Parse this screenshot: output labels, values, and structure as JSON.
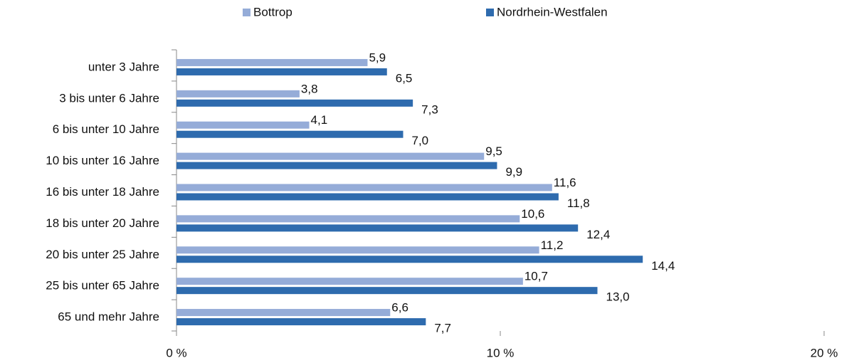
{
  "chart_data": {
    "type": "bar",
    "orientation": "horizontal",
    "categories": [
      "unter 3 Jahre",
      "3 bis unter 6 Jahre",
      "6 bis unter 10 Jahre",
      "10 bis unter 16 Jahre",
      "16 bis unter 18 Jahre",
      "18 bis unter 20 Jahre",
      "20 bis unter 25 Jahre",
      "25 bis unter 65 Jahre",
      "65 und mehr Jahre"
    ],
    "series": [
      {
        "name": "Bottrop",
        "color": "#95acd8",
        "values": [
          5.9,
          3.8,
          4.1,
          9.5,
          11.6,
          10.6,
          11.2,
          10.7,
          6.6
        ],
        "value_labels": [
          "5,9",
          "3,8",
          "4,1",
          "9,5",
          "11,6",
          "10,6",
          "11,2",
          "10,7",
          "6,6"
        ]
      },
      {
        "name": "Nordrhein-Westfalen",
        "color": "#2e6bae",
        "values": [
          6.5,
          7.3,
          7.0,
          9.9,
          11.8,
          12.4,
          14.4,
          13.0,
          7.7
        ],
        "value_labels": [
          "6,5",
          "7,3",
          "7,0",
          "9,9",
          "11,8",
          "12,4",
          "14,4",
          "13,0",
          "7,7"
        ]
      }
    ],
    "xlim": [
      0,
      20
    ],
    "xticks": [
      {
        "value": 0,
        "label": "0 %"
      },
      {
        "value": 10,
        "label": "10 %"
      },
      {
        "value": 20,
        "label": "20 %"
      }
    ],
    "legend": "top"
  }
}
